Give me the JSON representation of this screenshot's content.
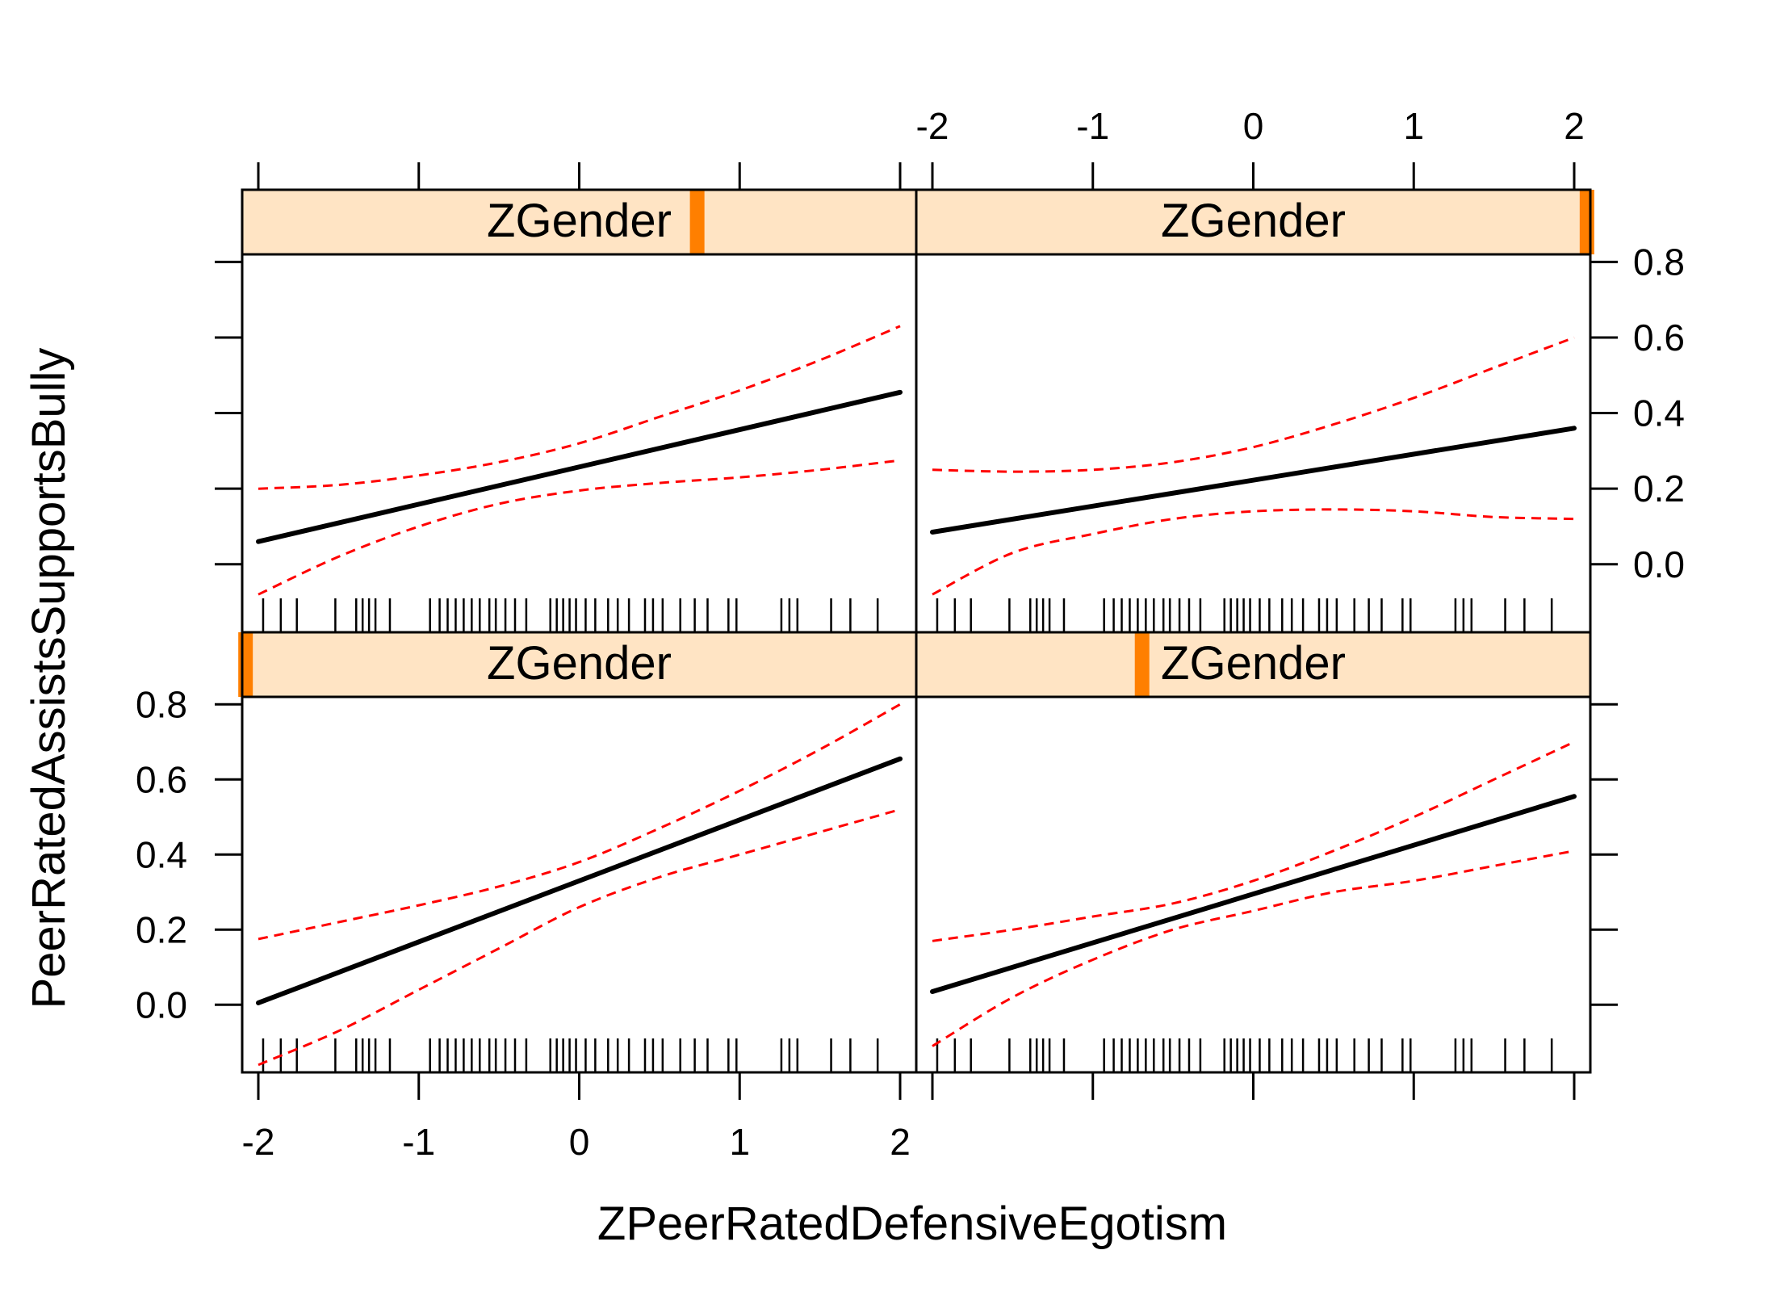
{
  "chart_data": {
    "type": "line",
    "layout": "2x2 lattice (trellis)",
    "xlabel": "ZPeerRatedDefensiveEgotism",
    "ylabel": "PeerRatedAssistsSupportsBully",
    "xlim": [
      -2,
      2
    ],
    "ylim": [
      -0.18,
      0.82
    ],
    "x_ticks": [
      -2,
      -1,
      0,
      1,
      2
    ],
    "y_ticks": [
      "0.0",
      "0.2",
      "0.4",
      "0.6",
      "0.8"
    ],
    "strip_fill": "#ffe4c4",
    "strip_marker": "#ff7f00",
    "fit_color": "#000000",
    "band_color": "#ff0000",
    "rug_x": [
      -1.97,
      -1.86,
      -1.76,
      -1.52,
      -1.39,
      -1.35,
      -1.31,
      -1.27,
      -1.18,
      -0.93,
      -0.87,
      -0.82,
      -0.77,
      -0.72,
      -0.67,
      -0.62,
      -0.56,
      -0.52,
      -0.46,
      -0.4,
      -0.33,
      -0.18,
      -0.14,
      -0.1,
      -0.06,
      -0.02,
      0.04,
      0.1,
      0.18,
      0.24,
      0.31,
      0.41,
      0.46,
      0.52,
      0.63,
      0.72,
      0.8,
      0.93,
      0.98,
      1.26,
      1.31,
      1.36,
      1.57,
      1.69,
      1.86
    ],
    "panels": [
      {
        "position": "top-left",
        "strip_label": "ZGender",
        "strip_marker_at": 0.675,
        "fit": {
          "x": [
            -2,
            2
          ],
          "y": [
            0.06,
            0.455
          ]
        },
        "upper": {
          "x": [
            -2,
            -1.5,
            -1,
            -0.5,
            0,
            0.5,
            1,
            1.5,
            2
          ],
          "y": [
            0.2,
            0.21,
            0.235,
            0.27,
            0.32,
            0.39,
            0.46,
            0.54,
            0.63
          ]
        },
        "lower": {
          "x": [
            -2,
            -1.5,
            -1,
            -0.5,
            0,
            0.5,
            1,
            1.5,
            2
          ],
          "y": [
            -0.08,
            0.02,
            0.1,
            0.16,
            0.195,
            0.215,
            0.23,
            0.25,
            0.275
          ]
        }
      },
      {
        "position": "top-right",
        "strip_label": "ZGender",
        "strip_marker_at": 0.995,
        "fit": {
          "x": [
            -2,
            2
          ],
          "y": [
            0.085,
            0.36
          ]
        },
        "upper": {
          "x": [
            -2,
            -1.5,
            -1,
            -0.5,
            0,
            0.5,
            1,
            1.5,
            2
          ],
          "y": [
            0.25,
            0.245,
            0.25,
            0.27,
            0.31,
            0.37,
            0.44,
            0.52,
            0.6
          ]
        },
        "lower": {
          "x": [
            -2,
            -1.5,
            -1,
            -0.5,
            0,
            0.5,
            1,
            1.5,
            2
          ],
          "y": [
            -0.08,
            0.03,
            0.08,
            0.12,
            0.14,
            0.145,
            0.14,
            0.125,
            0.12
          ]
        }
      },
      {
        "position": "bottom-left",
        "strip_label": "ZGender",
        "strip_marker_at": 0.005,
        "fit": {
          "x": [
            -2,
            2
          ],
          "y": [
            0.005,
            0.655
          ]
        },
        "upper": {
          "x": [
            -2,
            -1.5,
            -1,
            -0.5,
            0,
            0.5,
            1,
            1.5,
            2
          ],
          "y": [
            0.175,
            0.22,
            0.265,
            0.315,
            0.38,
            0.47,
            0.57,
            0.68,
            0.8
          ]
        },
        "lower": {
          "x": [
            -2,
            -1.5,
            -1,
            -0.5,
            0,
            0.5,
            1,
            1.5,
            2
          ],
          "y": [
            -0.16,
            -0.07,
            0.04,
            0.15,
            0.26,
            0.34,
            0.4,
            0.46,
            0.52
          ]
        }
      },
      {
        "position": "bottom-right",
        "strip_label": "ZGender",
        "strip_marker_at": 0.335,
        "fit": {
          "x": [
            -2,
            2
          ],
          "y": [
            0.035,
            0.555
          ]
        },
        "upper": {
          "x": [
            -2,
            -1.5,
            -1,
            -0.5,
            0,
            0.5,
            1,
            1.5,
            2
          ],
          "y": [
            0.17,
            0.2,
            0.235,
            0.27,
            0.33,
            0.41,
            0.5,
            0.6,
            0.7
          ]
        },
        "lower": {
          "x": [
            -2,
            -1.5,
            -1,
            -0.5,
            0,
            0.5,
            1,
            1.5,
            2
          ],
          "y": [
            -0.11,
            0.02,
            0.12,
            0.2,
            0.25,
            0.3,
            0.33,
            0.37,
            0.41
          ]
        }
      }
    ]
  }
}
